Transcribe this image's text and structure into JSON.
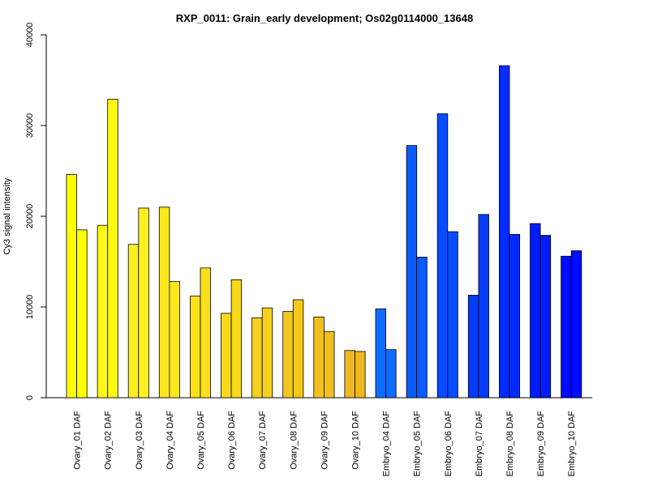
{
  "chart_data": {
    "type": "bar",
    "title": "RXP_0011: Grain_early development; Os02g0114000_13648",
    "ylabel": "Cy3 signal intensity",
    "xlabel": "",
    "ylim": [
      0,
      40000
    ],
    "yticks": [
      0,
      10000,
      20000,
      30000,
      40000
    ],
    "grid": false,
    "legend": "none",
    "categories": [
      "Ovary_01 DAF",
      "Ovary_02 DAF",
      "Ovary_03 DAF",
      "Ovary_04 DAF",
      "Ovary_05 DAF",
      "Ovary_06 DAF",
      "Ovary_07 DAF",
      "Ovary_08 DAF",
      "Ovary_09 DAF",
      "Ovary_10 DAF",
      "Embryo_04 DAF",
      "Embryo_05 DAF",
      "Embryo_06 DAF",
      "Embryo_07 DAF",
      "Embryo_08 DAF",
      "Embryo_09 DAF",
      "Embryo_10 DAF"
    ],
    "colors": [
      "#ffff00",
      "#fdf815",
      "#fcf020",
      "#fbe81c",
      "#f9e01a",
      "#f7d81b",
      "#f5d01c",
      "#f3c81d",
      "#f2c01e",
      "#f0b820",
      "#0f6bff",
      "#0b5cff",
      "#084cff",
      "#063cff",
      "#042cff",
      "#021cff",
      "#000cff"
    ],
    "series": [
      {
        "values": [
          24600,
          19000,
          16900,
          21000,
          11200,
          9300,
          8800,
          9500,
          8900,
          5200,
          9800,
          27800,
          31300,
          11300,
          36600,
          19200,
          15600
        ]
      },
      {
        "values": [
          18500,
          32900,
          20900,
          12800,
          14300,
          13000,
          9900,
          10800,
          7300,
          5100,
          5300,
          15500,
          18300,
          20200,
          18000,
          17900,
          16200
        ]
      }
    ]
  }
}
